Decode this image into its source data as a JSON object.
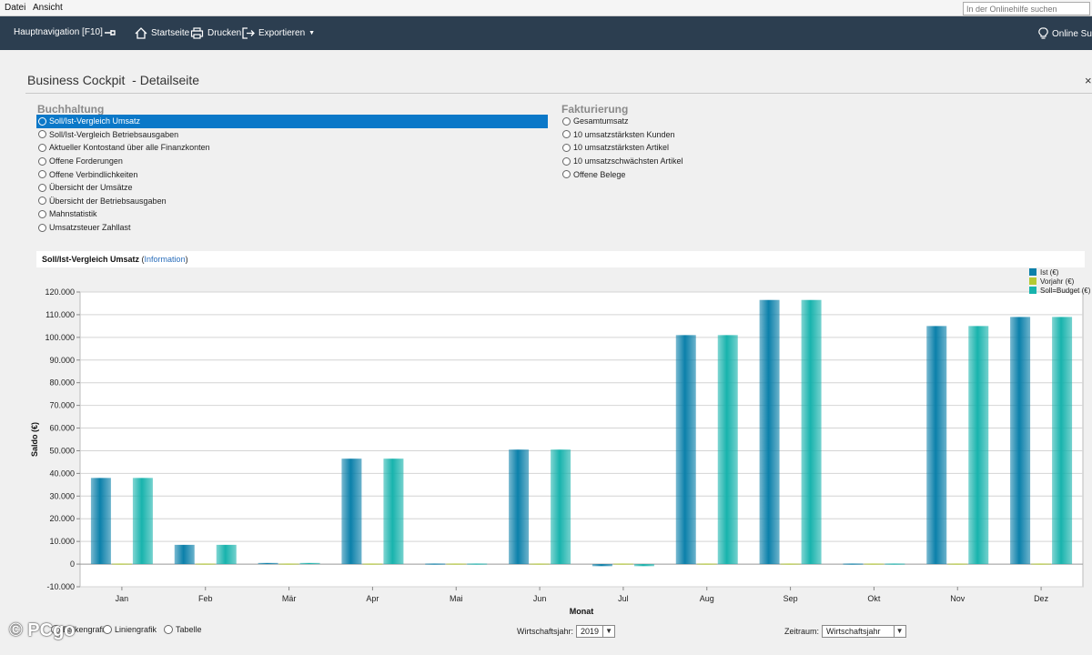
{
  "menu": {
    "file": "Datei",
    "view": "Ansicht",
    "help_placeholder": "In der Onlinehilfe suchen"
  },
  "toolbar": {
    "main_nav": "Hauptnavigation [F10]",
    "home": "Startseite",
    "print": "Drucken",
    "export": "Exportieren",
    "online_support": "Online Sup"
  },
  "page": {
    "title": "Business Cockpit  - Detailseite",
    "close": "×"
  },
  "buchhaltung": {
    "title": "Buchhaltung",
    "options": [
      {
        "label": "Soll/Ist-Vergleich Umsatz",
        "selected": true
      },
      {
        "label": "Soll/Ist-Vergleich Betriebsausgaben",
        "selected": false
      },
      {
        "label": "Aktueller Kontostand über alle Finanzkonten",
        "selected": false
      },
      {
        "label": "Offene Forderungen",
        "selected": false
      },
      {
        "label": "Offene Verbindlichkeiten",
        "selected": false
      },
      {
        "label": "Übersicht der Umsätze",
        "selected": false
      },
      {
        "label": "Übersicht der Betriebsausgaben",
        "selected": false
      },
      {
        "label": "Mahnstatistik",
        "selected": false
      },
      {
        "label": "Umsatzsteuer Zahllast",
        "selected": false
      }
    ]
  },
  "fakturierung": {
    "title": "Fakturierung",
    "options": [
      {
        "label": "Gesamtumsatz",
        "selected": false
      },
      {
        "label": "10 umsatzstärksten Kunden",
        "selected": false
      },
      {
        "label": "10 umsatzstärksten Artikel",
        "selected": false
      },
      {
        "label": "10 umsatzschwächsten Artikel",
        "selected": false
      },
      {
        "label": "Offene Belege",
        "selected": false
      }
    ]
  },
  "chart_section": {
    "title": "Soll/Ist-Vergleich Umsatz",
    "open_paren": " (",
    "info_link": "Information",
    "close_paren": ")"
  },
  "chart_data": {
    "type": "bar",
    "xlabel": "Monat",
    "ylabel": "Saldo (€)",
    "ylim": [
      -10000,
      120000
    ],
    "ytick_step": 10000,
    "ytick_labels": [
      "-10.000",
      "0",
      "10.000",
      "20.000",
      "30.000",
      "40.000",
      "50.000",
      "60.000",
      "70.000",
      "80.000",
      "90.000",
      "100.000",
      "110.000",
      "120.000"
    ],
    "grid": true,
    "legend_position": "top-right",
    "categories": [
      "Jan",
      "Feb",
      "Mär",
      "Apr",
      "Mai",
      "Jun",
      "Jul",
      "Aug",
      "Sep",
      "Okt",
      "Nov",
      "Dez"
    ],
    "series": [
      {
        "name": "Ist (€)",
        "color": "#0b80aa",
        "values": [
          38000,
          8500,
          500,
          46500,
          200,
          50500,
          -900,
          101000,
          116500,
          300,
          105000,
          109000
        ]
      },
      {
        "name": "Vorjahr (€)",
        "color": "#b5c933",
        "values": [
          0,
          0,
          0,
          0,
          0,
          0,
          0,
          0,
          0,
          0,
          0,
          0
        ]
      },
      {
        "name": "Soll=Budget (€)",
        "color": "#18b3ad",
        "values": [
          38000,
          8500,
          500,
          46500,
          200,
          50500,
          -900,
          101000,
          116500,
          300,
          105000,
          109000
        ]
      }
    ]
  },
  "bottom": {
    "bar_chart": "Balkengrafik",
    "line_chart": "Liniengrafik",
    "table": "Tabelle",
    "fiscal_year_label": "Wirtschaftsjahr:",
    "fiscal_year_value": "2019",
    "period_label": "Zeitraum:",
    "period_value": "Wirtschaftsjahr"
  },
  "watermark": "© PCgo"
}
